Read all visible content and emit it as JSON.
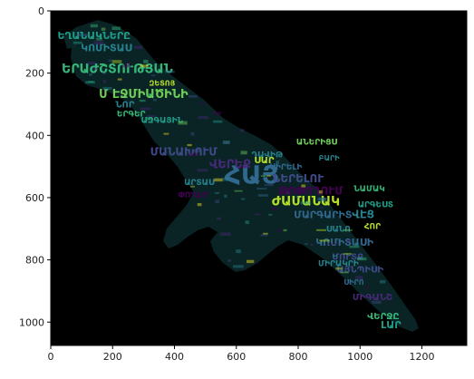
{
  "image": {
    "description_free": true,
    "background_color": "#000000",
    "palette": [
      "#440154",
      "#482878",
      "#3e4a89",
      "#31688e",
      "#26828e",
      "#1f9e89",
      "#35b779",
      "#6ece58",
      "#b5de2b",
      "#fde725"
    ],
    "x_ticks": [
      0,
      200,
      400,
      600,
      800,
      1000,
      1200
    ],
    "y_ticks": [
      0,
      200,
      400,
      600,
      800,
      1000
    ],
    "xlim": [
      0,
      1345
    ],
    "ylim": [
      1075,
      0
    ]
  },
  "words": [
    {
      "text": "ՀԱՅ",
      "size": 28,
      "color": "#31688e",
      "x": 650,
      "y": 555
    },
    {
      "text": "ԵՐԱԺՇՏՈՒԹՅԱՆ",
      "size": 14,
      "color": "#35b779",
      "x": 215,
      "y": 200
    },
    {
      "text": "ԺԱՄԱՆԱԿ",
      "size": 14,
      "color": "#b5de2b",
      "x": 825,
      "y": 625
    },
    {
      "text": "Մ ԷՋՄԻԱԾԻՆԻ",
      "size": 13,
      "color": "#6ece58",
      "x": 300,
      "y": 280
    },
    {
      "text": "ԵՂԱՆԱԿՆԵՐԸ",
      "size": 11,
      "color": "#1f9e89",
      "x": 140,
      "y": 90
    },
    {
      "text": "ԿՈՄԻՏԱՍ",
      "size": 11,
      "color": "#26828e",
      "x": 180,
      "y": 130
    },
    {
      "text": "ՄԱՆԱԽՈՒՄ",
      "size": 12,
      "color": "#3e4a89",
      "x": 430,
      "y": 465
    },
    {
      "text": "ՎԵՐԵՔ",
      "size": 13,
      "color": "#482878",
      "x": 580,
      "y": 505
    },
    {
      "text": "ՆԵՐԵԼՈՒ",
      "size": 12,
      "color": "#3e4a89",
      "x": 800,
      "y": 550
    },
    {
      "text": "ԹՈՓՈՂՈՒՄ",
      "size": 12,
      "color": "#440154",
      "x": 840,
      "y": 590
    },
    {
      "text": "ՄԱՐԳԱՐԻՏ",
      "size": 11,
      "color": "#31688e",
      "x": 880,
      "y": 665
    },
    {
      "text": "ՎԷՑ",
      "size": 12,
      "color": "#26828e",
      "x": 1010,
      "y": 665
    },
    {
      "text": "ԿՈՄԻՏԱՍԻ",
      "size": 11,
      "color": "#31688e",
      "x": 950,
      "y": 755
    },
    {
      "text": "ՄՈՒՏՔ",
      "size": 10,
      "color": "#3e4a89",
      "x": 960,
      "y": 800
    },
    {
      "text": "ԱՅՆՊԻՍԻ",
      "size": 10,
      "color": "#3e4a89",
      "x": 1000,
      "y": 840
    },
    {
      "text": "ՄԻԳԱՆՇ",
      "size": 10,
      "color": "#482878",
      "x": 1040,
      "y": 930
    },
    {
      "text": "ՎԵՐՋԸ",
      "size": 10,
      "color": "#35b779",
      "x": 1075,
      "y": 990
    },
    {
      "text": "ԼԱՐ",
      "size": 11,
      "color": "#1f9e89",
      "x": 1100,
      "y": 1020
    },
    {
      "text": "ՍԱՆՈ",
      "size": 9,
      "color": "#26828e",
      "x": 930,
      "y": 710
    },
    {
      "text": "ԱՐԳԵՍՏ",
      "size": 9,
      "color": "#1f9e89",
      "x": 1050,
      "y": 630
    },
    {
      "text": "ԵՐԳԵՐ",
      "size": 9,
      "color": "#35b779",
      "x": 260,
      "y": 340
    },
    {
      "text": "ՆՈՐ",
      "size": 10,
      "color": "#26828e",
      "x": 240,
      "y": 310
    },
    {
      "text": "ԱԶԳԱՅԻՆ",
      "size": 9,
      "color": "#1f9e89",
      "x": 360,
      "y": 360
    },
    {
      "text": "ՍԻՐԵԼԻ",
      "size": 9,
      "color": "#31688e",
      "x": 760,
      "y": 510
    },
    {
      "text": "ԱՐՏԱՍ",
      "size": 9,
      "color": "#26828e",
      "x": 480,
      "y": 560
    },
    {
      "text": "ՆԱՄԱԿ",
      "size": 9,
      "color": "#35b779",
      "x": 1030,
      "y": 580
    },
    {
      "text": "ՓՈՂԵՐ",
      "size": 9,
      "color": "#440154",
      "x": 460,
      "y": 600
    },
    {
      "text": "ԴԱՎԻԹ",
      "size": 9,
      "color": "#26828e",
      "x": 700,
      "y": 470
    },
    {
      "text": "ՍԱՐ",
      "size": 10,
      "color": "#b5de2b",
      "x": 690,
      "y": 490
    },
    {
      "text": "ԱՆԵՐԻՑՍ",
      "size": 9,
      "color": "#6ece58",
      "x": 860,
      "y": 430
    },
    {
      "text": "ԲԱՐԻ",
      "size": 8,
      "color": "#26828e",
      "x": 900,
      "y": 480
    },
    {
      "text": "ՀՈՐ",
      "size": 9,
      "color": "#b5de2b",
      "x": 1040,
      "y": 700
    },
    {
      "text": "ԶԵՏՈՅ",
      "size": 8,
      "color": "#b5de2b",
      "x": 360,
      "y": 240
    },
    {
      "text": "ՍԻՐՈ",
      "size": 8,
      "color": "#31688e",
      "x": 980,
      "y": 880
    },
    {
      "text": "ՄԻՐԱԿՐԻ",
      "size": 9,
      "color": "#26828e",
      "x": 930,
      "y": 820
    }
  ]
}
